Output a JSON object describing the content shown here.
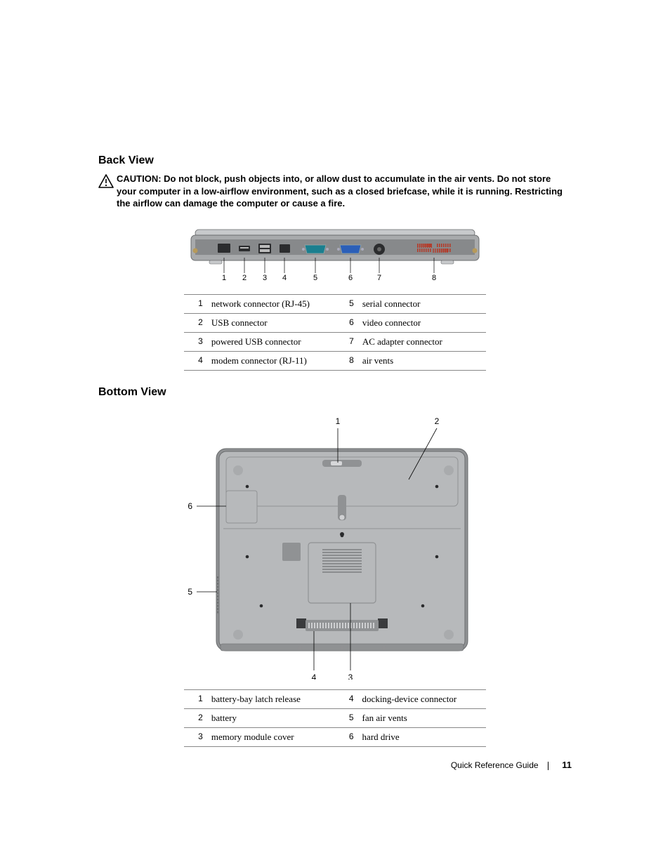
{
  "section1": {
    "heading": "Back View",
    "caution_label": "CAUTION:",
    "caution_text": "Do not block, push objects into, or allow dust to accumulate in the air vents. Do not store your computer in a low-airflow environment, such as a closed briefcase, while it is running. Restricting the airflow can damage the computer or cause a fire."
  },
  "back_diagram": {
    "callout_nums": [
      "1",
      "2",
      "3",
      "4",
      "5",
      "6",
      "7",
      "8"
    ],
    "colors": {
      "body_light": "#c7c9cb",
      "body_mid": "#a8aaac",
      "body_dark": "#5f6163",
      "port_dark": "#2b2c2e",
      "vga_teal": "#1a7f8f",
      "vga_blue": "#2b5fb8",
      "vent": "#b53b2a",
      "side_gold": "#b79a5a",
      "edge": "#6a6c6e"
    }
  },
  "back_table": {
    "rows": [
      {
        "n1": "1",
        "l1": "network connector (RJ-45)",
        "n2": "5",
        "l2": "serial connector"
      },
      {
        "n1": "2",
        "l1": "USB connector",
        "n2": "6",
        "l2": "video connector"
      },
      {
        "n1": "3",
        "l1": "powered USB connector",
        "n2": "7",
        "l2": "AC adapter connector"
      },
      {
        "n1": "4",
        "l1": "modem connector (RJ-11)",
        "n2": "8",
        "l2": "air vents"
      }
    ]
  },
  "section2": {
    "heading": "Bottom View"
  },
  "bottom_diagram": {
    "callout_nums": [
      "1",
      "2",
      "3",
      "4",
      "5",
      "6"
    ],
    "colors": {
      "panel": "#b7b9bb",
      "panel_dark": "#909294",
      "rubber": "#3a3b3d",
      "screw": "#2a2b2d",
      "vent_line": "#707274",
      "edge": "#6a6c6e",
      "side": "#8f9193"
    }
  },
  "bottom_table": {
    "rows": [
      {
        "n1": "1",
        "l1": "battery-bay latch release",
        "n2": "4",
        "l2": "docking-device connector"
      },
      {
        "n1": "2",
        "l1": "battery",
        "n2": "5",
        "l2": "fan air vents"
      },
      {
        "n1": "3",
        "l1": "memory module cover",
        "n2": "6",
        "l2": "hard drive"
      }
    ]
  },
  "footer": {
    "title": "Quick Reference Guide",
    "page": "11"
  }
}
